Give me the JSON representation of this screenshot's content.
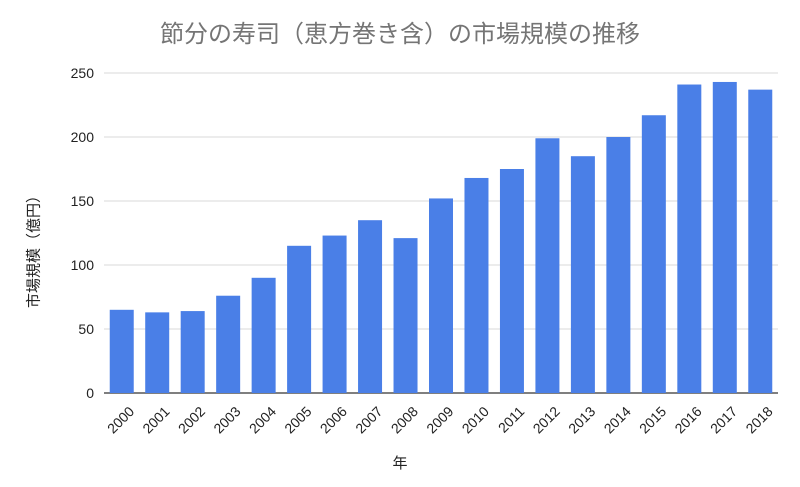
{
  "chart_data": {
    "type": "bar",
    "title": "節分の寿司（恵方巻き含）の市場規模の推移",
    "xlabel": "年",
    "ylabel": "市場規模（億円）",
    "categories": [
      "2000",
      "2001",
      "2002",
      "2003",
      "2004",
      "2005",
      "2006",
      "2007",
      "2008",
      "2009",
      "2010",
      "2011",
      "2012",
      "2013",
      "2014",
      "2015",
      "2016",
      "2017",
      "2018"
    ],
    "values": [
      65,
      63,
      64,
      76,
      90,
      115,
      123,
      135,
      121,
      152,
      168,
      175,
      199,
      185,
      200,
      217,
      241,
      243,
      237
    ],
    "ylim": [
      0,
      250
    ],
    "yticks": [
      "0",
      "50",
      "100",
      "150",
      "200",
      "250"
    ],
    "grid": true,
    "legend": "none",
    "colors": {
      "bar": "#4a7fe7",
      "grid": "#d9d9d9",
      "baseline": "#333333"
    }
  }
}
